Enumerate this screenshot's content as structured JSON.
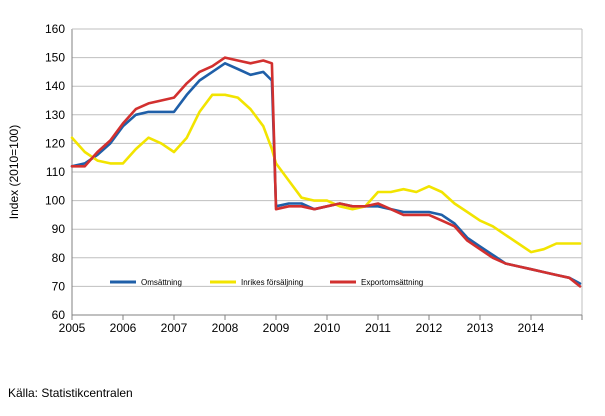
{
  "chart_data": {
    "type": "line",
    "title": "",
    "xlabel": "",
    "ylabel": "Index (2010=100)",
    "ylim": [
      60,
      160
    ],
    "yticks": [
      60,
      70,
      80,
      90,
      100,
      110,
      120,
      130,
      140,
      150,
      160
    ],
    "xlim": [
      2005,
      2015
    ],
    "xticks": [
      2005,
      2006,
      2007,
      2008,
      2009,
      2010,
      2011,
      2012,
      2013,
      2014
    ],
    "grid": "horizontal",
    "legend_position": "bottom-inside",
    "series": [
      {
        "name": "Omsättning",
        "color": "#1f5fa8",
        "x": [
          2005.0,
          2005.25,
          2005.5,
          2005.75,
          2006.0,
          2006.25,
          2006.5,
          2006.75,
          2007.0,
          2007.25,
          2007.5,
          2007.75,
          2008.0,
          2008.25,
          2008.5,
          2008.75,
          2008.92,
          2009.0,
          2009.25,
          2009.5,
          2009.75,
          2010.0,
          2010.25,
          2010.5,
          2010.75,
          2011.0,
          2011.25,
          2011.5,
          2011.75,
          2012.0,
          2012.25,
          2012.5,
          2012.75,
          2013.0,
          2013.25,
          2013.5,
          2013.75,
          2014.0,
          2014.25,
          2014.5,
          2014.75,
          2014.96
        ],
        "y": [
          112,
          113,
          116,
          120,
          126,
          130,
          131,
          131,
          131,
          137,
          142,
          145,
          148,
          146,
          144,
          145,
          142,
          98,
          99,
          99,
          97,
          98,
          99,
          98,
          98,
          98,
          97,
          96,
          96,
          96,
          95,
          92,
          87,
          84,
          81,
          78,
          77,
          76,
          75,
          74,
          73,
          71
        ]
      },
      {
        "name": "Inrikes försäljning",
        "color": "#f2e400",
        "x": [
          2005.0,
          2005.25,
          2005.5,
          2005.75,
          2006.0,
          2006.25,
          2006.5,
          2006.75,
          2007.0,
          2007.25,
          2007.5,
          2007.75,
          2008.0,
          2008.25,
          2008.5,
          2008.75,
          2008.92,
          2009.0,
          2009.25,
          2009.5,
          2009.75,
          2010.0,
          2010.25,
          2010.5,
          2010.75,
          2011.0,
          2011.25,
          2011.5,
          2011.75,
          2012.0,
          2012.25,
          2012.5,
          2012.75,
          2013.0,
          2013.25,
          2013.5,
          2013.75,
          2014.0,
          2014.25,
          2014.5,
          2014.75,
          2014.96
        ],
        "y": [
          122,
          117,
          114,
          113,
          113,
          118,
          122,
          120,
          117,
          122,
          131,
          137,
          137,
          136,
          132,
          126,
          118,
          113,
          107,
          101,
          100,
          100,
          98,
          97,
          98,
          103,
          103,
          104,
          103,
          105,
          103,
          99,
          96,
          93,
          91,
          88,
          85,
          82,
          83,
          85,
          85,
          85
        ]
      },
      {
        "name": "Exportomsättning",
        "color": "#d2302f",
        "x": [
          2005.0,
          2005.25,
          2005.5,
          2005.75,
          2006.0,
          2006.25,
          2006.5,
          2006.75,
          2007.0,
          2007.25,
          2007.5,
          2007.75,
          2008.0,
          2008.25,
          2008.5,
          2008.75,
          2008.92,
          2009.0,
          2009.25,
          2009.5,
          2009.75,
          2010.0,
          2010.25,
          2010.5,
          2010.75,
          2011.0,
          2011.25,
          2011.5,
          2011.75,
          2012.0,
          2012.25,
          2012.5,
          2012.75,
          2013.0,
          2013.25,
          2013.5,
          2013.75,
          2014.0,
          2014.25,
          2014.5,
          2014.75,
          2014.96
        ],
        "y": [
          112,
          112,
          117,
          121,
          127,
          132,
          134,
          135,
          136,
          141,
          145,
          147,
          150,
          149,
          148,
          149,
          148,
          97,
          98,
          98,
          97,
          98,
          99,
          98,
          98,
          99,
          97,
          95,
          95,
          95,
          93,
          91,
          86,
          83,
          80,
          78,
          77,
          76,
          75,
          74,
          73,
          70
        ]
      }
    ]
  },
  "source": "Källa: Statistikcentralen"
}
